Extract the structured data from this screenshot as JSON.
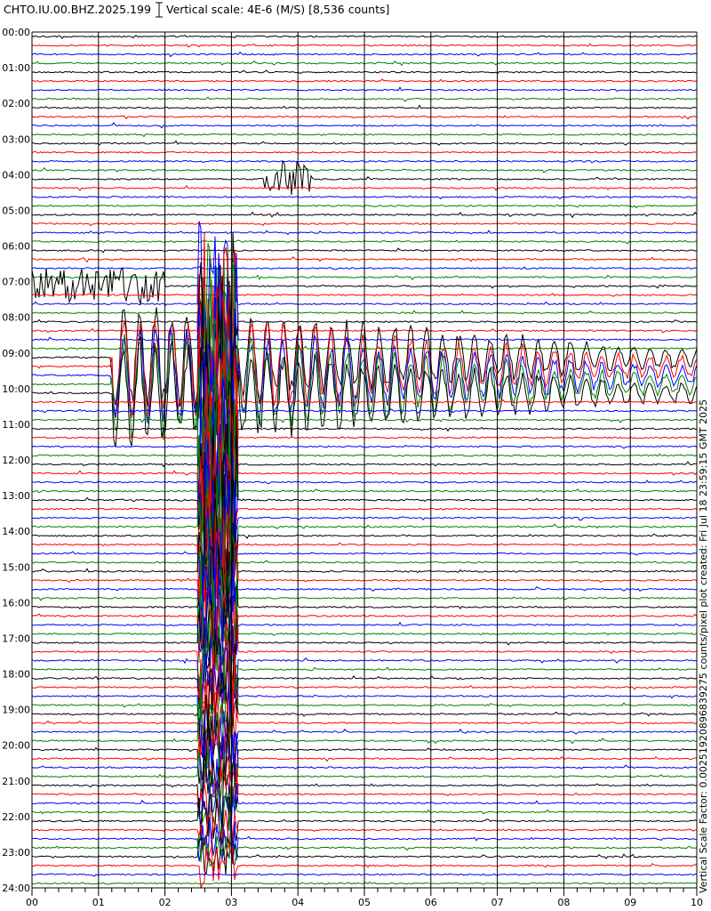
{
  "header": {
    "station": "CHTO.IU.00.BHZ.2025.199",
    "scale_label": "Vertical scale: 4E-6 (M/S) [8,536 counts]"
  },
  "side_note": "Vertical Scale Factor: 0.00251920896839275 counts/pixel plot created: Fri Jul 18 23:59:15 GMT 2025",
  "colors": {
    "trace_cycle": [
      "#000000",
      "#ff0000",
      "#0000ff",
      "#008000"
    ],
    "grid": "#000000"
  },
  "chart_data": {
    "type": "line",
    "title": "CHTO.IU.00.BHZ.2025.199",
    "subtitle": "Vertical scale: 4E-6 (M/S) [8,536 counts]",
    "xlabel": "",
    "ylabel": "",
    "x_range": [
      0,
      10
    ],
    "x_ticks": [
      "00",
      "01",
      "02",
      "03",
      "04",
      "05",
      "06",
      "07",
      "08",
      "09",
      "10"
    ],
    "y_range_hours": [
      0,
      24
    ],
    "y_ticks": [
      "00:00",
      "01:00",
      "02:00",
      "03:00",
      "04:00",
      "05:00",
      "06:00",
      "07:00",
      "08:00",
      "09:00",
      "10:00",
      "11:00",
      "12:00",
      "13:00",
      "14:00",
      "15:00",
      "16:00",
      "17:00",
      "18:00",
      "19:00",
      "20:00",
      "21:00",
      "22:00",
      "23:00",
      "24:00"
    ],
    "traces_per_hour": 4,
    "grid": true,
    "legend": "none",
    "events": [
      {
        "name": "main earthquake",
        "start_hour": 7.5,
        "end_hour": 23.3,
        "x_start": 2.5,
        "x_end": 3.1
      },
      {
        "name": "surface waves",
        "start_hour": 9.0,
        "end_hour": 10.2,
        "x_start": 1.2,
        "x_end": 10.0
      },
      {
        "name": "local event 07:00",
        "start_hour": 7.0,
        "end_hour": 7.2,
        "x_start": 0.0,
        "x_end": 2.0
      },
      {
        "name": "local event 04:00",
        "start_hour": 4.0,
        "end_hour": 4.1,
        "x_start": 3.5,
        "x_end": 4.2
      }
    ]
  }
}
